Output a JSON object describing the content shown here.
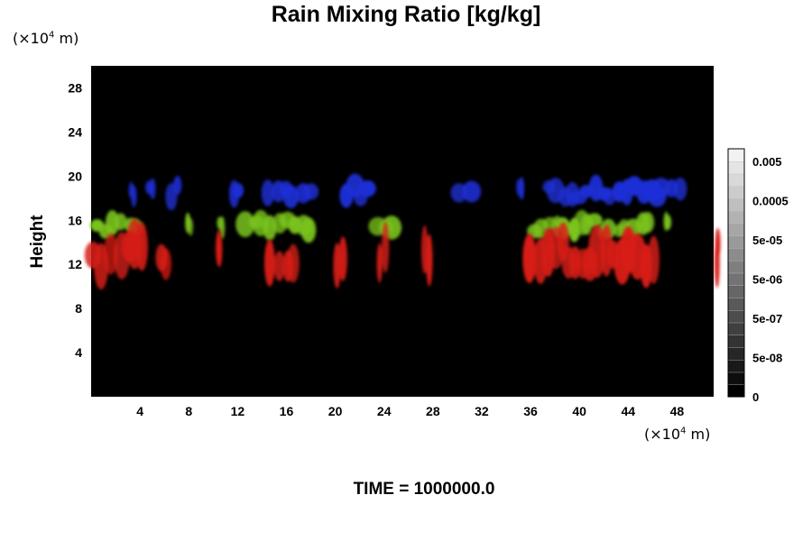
{
  "chart_data": {
    "type": "heatmap",
    "title": "Rain Mixing Ratio [kg/kg]",
    "ylabel": "Height",
    "y_unit": {
      "prefix": "(×10",
      "exp": "4",
      "suffix": " m)"
    },
    "x_unit": {
      "prefix": "(×10",
      "exp": "4",
      "suffix": " m)"
    },
    "time_label": "TIME = 1000000.0",
    "xlim": [
      0,
      51
    ],
    "ylim": [
      0,
      30
    ],
    "x_ticks": [
      4,
      8,
      12,
      16,
      20,
      24,
      28,
      32,
      36,
      40,
      44,
      48
    ],
    "y_ticks": [
      4,
      8,
      12,
      16,
      20,
      24,
      28
    ],
    "background_color": "#000000",
    "colorbar": {
      "tick_labels": [
        "0.005",
        "0.0005",
        "5e-05",
        "5e-06",
        "5e-07",
        "5e-08",
        "0"
      ],
      "n_levels": 20,
      "low_color": "#000000",
      "high_color": "#f2f2f2"
    },
    "layers": [
      {
        "color": "#1e2fd8",
        "y_range": [
          17.5,
          19.8
        ],
        "x_intervals": [
          [
            3.2,
            3.6
          ],
          [
            4.7,
            5.3
          ],
          [
            6.5,
            7.3
          ],
          [
            11.4,
            12.4
          ],
          [
            14.2,
            18.2
          ],
          [
            20.5,
            23.0
          ],
          [
            30.0,
            31.3
          ],
          [
            35.1,
            35.5
          ],
          [
            37.3,
            46.7
          ],
          [
            46.4,
            48.4
          ]
        ]
      },
      {
        "color": "#7ac41c",
        "y_range": [
          14.4,
          16.6
        ],
        "x_intervals": [
          [
            0.3,
            4.0
          ],
          [
            8.0,
            8.4
          ],
          [
            10.6,
            10.9
          ],
          [
            12.4,
            18.3
          ],
          [
            23.0,
            25.0
          ],
          [
            36.0,
            46.0
          ],
          [
            47.0,
            47.5
          ]
        ]
      },
      {
        "color": "#d81e16",
        "y_range": [
          10.7,
          15.2
        ],
        "x_intervals": [
          [
            0,
            1.2
          ],
          [
            1.5,
            4.5
          ],
          [
            5.5,
            6.4
          ],
          [
            10.2,
            10.7
          ],
          [
            14.5,
            16.8
          ],
          [
            20.0,
            20.6
          ],
          [
            23.7,
            24.2
          ],
          [
            27.3,
            27.9
          ],
          [
            35.8,
            46.2
          ],
          [
            51.2,
            51.5
          ]
        ]
      }
    ]
  }
}
